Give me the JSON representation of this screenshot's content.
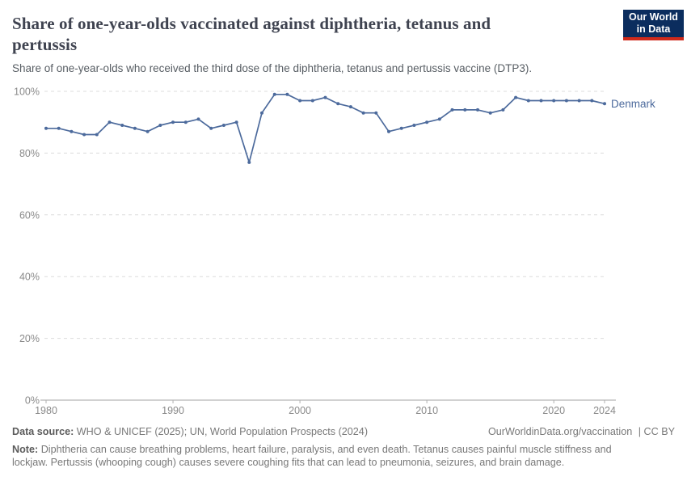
{
  "header": {
    "title_line1": "Share of one-year-olds vaccinated against diphtheria, tetanus and",
    "title_line2": "pertussis",
    "subtitle": "Share of one-year-olds who received the third dose of the diphtheria, tetanus and pertussis vaccine (DTP3)."
  },
  "logo": {
    "line1": "Our World",
    "line2": "in Data"
  },
  "chart_data": {
    "type": "line",
    "title": "Share of one-year-olds vaccinated against diphtheria, tetanus and pertussis",
    "x": [
      1980,
      1981,
      1982,
      1983,
      1984,
      1985,
      1986,
      1987,
      1988,
      1989,
      1990,
      1991,
      1992,
      1993,
      1994,
      1995,
      1996,
      1997,
      1998,
      1999,
      2000,
      2001,
      2002,
      2003,
      2004,
      2005,
      2006,
      2007,
      2008,
      2009,
      2010,
      2011,
      2012,
      2013,
      2014,
      2015,
      2016,
      2017,
      2018,
      2019,
      2020,
      2021,
      2022,
      2023,
      2024
    ],
    "series": [
      {
        "name": "Denmark",
        "values": [
          88,
          88,
          87,
          86,
          86,
          90,
          89,
          88,
          87,
          89,
          90,
          90,
          91,
          88,
          89,
          90,
          77,
          93,
          99,
          99,
          97,
          97,
          98,
          96,
          95,
          93,
          93,
          87,
          88,
          89,
          90,
          91,
          94,
          94,
          94,
          93,
          94,
          98,
          97,
          97,
          97,
          97,
          97,
          97,
          96
        ]
      }
    ],
    "xlim": [
      1980,
      2024
    ],
    "ylim": [
      0,
      100
    ],
    "xticks": [
      1980,
      1990,
      2000,
      2010,
      2020,
      2024
    ],
    "yticks": [
      0,
      20,
      40,
      60,
      80,
      100
    ],
    "ytick_suffix": "%",
    "grid": "horizontal-dashed",
    "legend_position": "end-of-line-label",
    "entity_label": "Denmark",
    "colors": {
      "line": "#4c6a9c",
      "entity_label": "#4c6a9c",
      "grid": "#dcdcdc",
      "axis": "#a3a3a3",
      "tick": "#b0b0b0",
      "tick_label": "#8a8a8a"
    }
  },
  "footer": {
    "source_label": "Data source:",
    "source_text": "WHO & UNICEF (2025); UN, World Population Prospects (2024)",
    "link_text": "OurWorldinData.org/vaccination",
    "license_text": "| CC BY",
    "note_label": "Note:",
    "note_text": "Diphtheria can cause breathing problems, heart failure, paralysis, and even death. Tetanus causes painful muscle stiffness and lockjaw. Pertussis (whooping cough) causes severe coughing fits that can lead to pneumonia, seizures, and brain damage."
  }
}
